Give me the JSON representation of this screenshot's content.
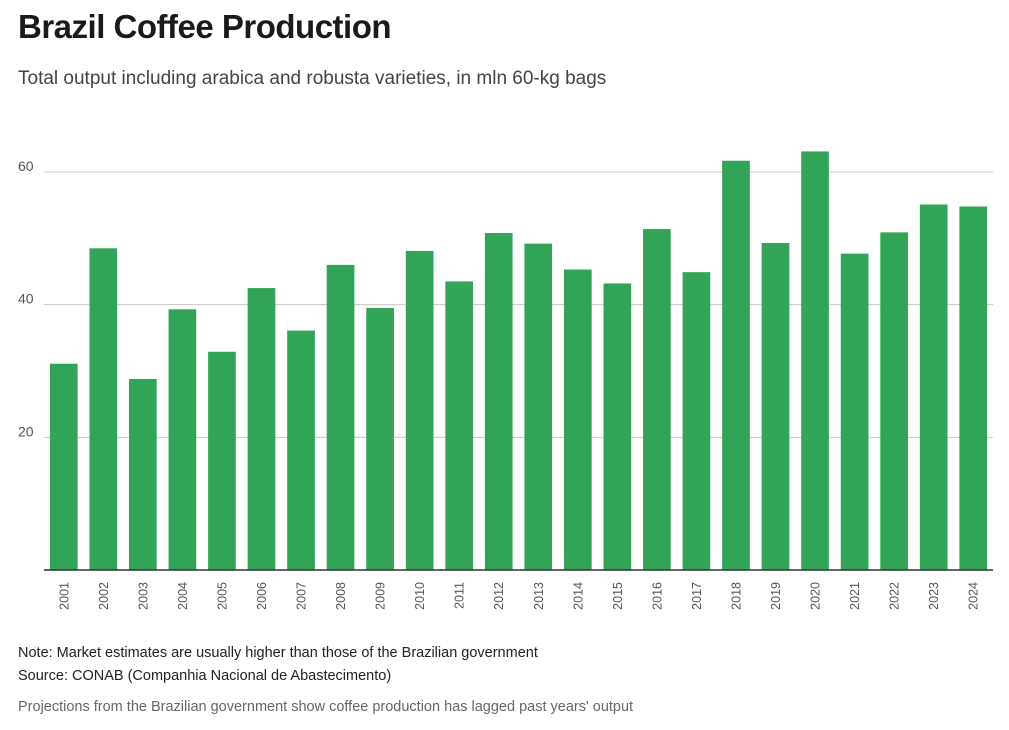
{
  "header": {
    "title": "Brazil Coffee Production",
    "subtitle": "Total output including arabica and robusta varieties, in mln 60-kg bags"
  },
  "footer": {
    "note": "Note: Market estimates are usually higher than those of the Brazilian government",
    "source": "Source: CONAB (Companhia Nacional de Abastecimento)",
    "caption": "Projections from the Brazilian government show coffee production has lagged past years' output"
  },
  "colors": {
    "bar": "#32a457",
    "grid": "#c8c8c8",
    "axis": "#333333",
    "tick_text": "#555555"
  },
  "chart_data": {
    "type": "bar",
    "title": "Brazil Coffee Production",
    "xlabel": "",
    "ylabel": "mln 60-kg bags",
    "ylim": [
      0,
      60
    ],
    "yticks": [
      20,
      40,
      60
    ],
    "grid": true,
    "categories": [
      "2001",
      "2002",
      "2003",
      "2004",
      "2005",
      "2006",
      "2007",
      "2008",
      "2009",
      "2010",
      "2011",
      "2012",
      "2013",
      "2014",
      "2015",
      "2016",
      "2017",
      "2018",
      "2019",
      "2020",
      "2021",
      "2022",
      "2023",
      "2024"
    ],
    "values": [
      31.1,
      48.5,
      28.8,
      39.3,
      32.9,
      42.5,
      36.1,
      46.0,
      39.5,
      48.1,
      43.5,
      50.8,
      49.2,
      45.3,
      43.2,
      51.4,
      44.9,
      61.7,
      49.3,
      63.1,
      47.7,
      50.9,
      55.1,
      54.8
    ]
  }
}
